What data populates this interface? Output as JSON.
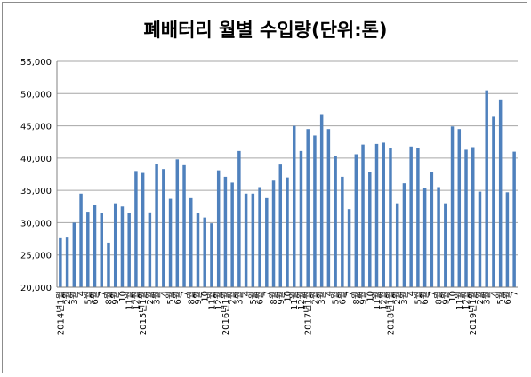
{
  "chart_data": {
    "type": "bar",
    "title": "폐배터리 월별 수입량(단위:톤)",
    "xlabel": "",
    "ylabel": "",
    "ylim": [
      20000,
      55000
    ],
    "ytick_step": 5000,
    "y_tick_labels": [
      "20,000",
      "25,000",
      "30,000",
      "35,000",
      "40,000",
      "45,000",
      "50,000",
      "55,000"
    ],
    "grid": true,
    "bar_color": "#4f81bd",
    "categories": [
      "2014년1월",
      "2월",
      "3월",
      "4",
      "5월",
      "6월",
      "7",
      "8월",
      "9월",
      "10",
      "11월",
      "12월",
      "2015년1월",
      "2월",
      "3월",
      "4",
      "5월",
      "6월",
      "7",
      "8월",
      "9월",
      "10",
      "11월",
      "12월",
      "2016년1월",
      "2월",
      "3월",
      "4",
      "5월",
      "6월",
      "7",
      "8월",
      "9월",
      "10",
      "11월",
      "12월",
      "2017년1월",
      "2월",
      "3월",
      "4",
      "5월",
      "6월",
      "7",
      "8월",
      "9월",
      "10",
      "11월",
      "12월",
      "2018년1월",
      "2월",
      "3월",
      "4",
      "5월",
      "6월",
      "7",
      "8월",
      "9월",
      "10",
      "11월",
      "12월",
      "2019년1월",
      "2월",
      "3월",
      "4",
      "5월",
      "6월",
      "7"
    ],
    "values": [
      27600,
      27700,
      30000,
      34500,
      31700,
      32800,
      31500,
      26900,
      33000,
      32500,
      31500,
      38000,
      37700,
      31600,
      39100,
      38300,
      33700,
      39800,
      38900,
      33800,
      31500,
      30800,
      29900,
      38100,
      37100,
      36200,
      41100,
      34500,
      34500,
      35500,
      33800,
      36500,
      39000,
      37000,
      45000,
      41100,
      44500,
      43500,
      46800,
      44500,
      40300,
      37100,
      32100,
      40600,
      42100,
      37900,
      42200,
      42400,
      41600,
      33000,
      36100,
      41800,
      41600,
      35400,
      37900,
      35500,
      33000,
      44900,
      44500,
      41300,
      41700,
      34800,
      50500,
      46400,
      49100,
      34700,
      41000
    ]
  }
}
